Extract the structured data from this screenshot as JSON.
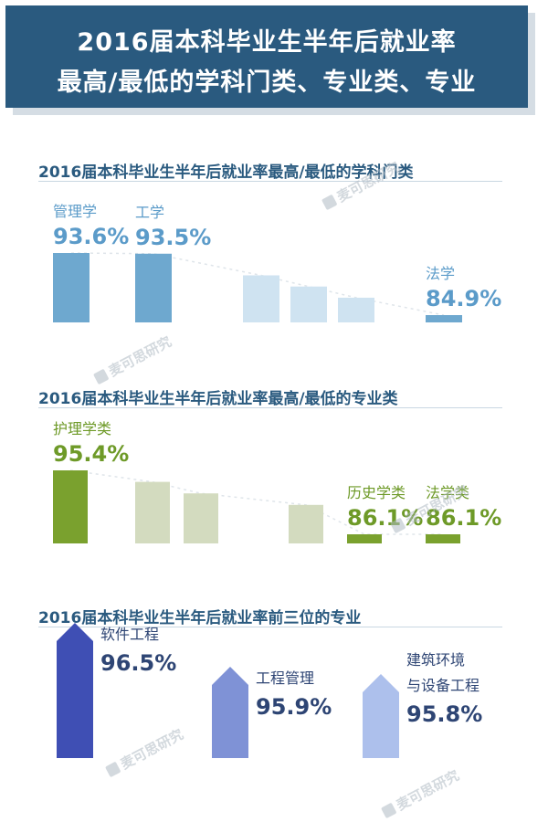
{
  "header": {
    "title_line1": "2016届本科毕业生半年后就业率",
    "title_line2": "最高/最低的学科门类、专业类、专业"
  },
  "watermark": {
    "text": "麦可思研究"
  },
  "chart_data": [
    {
      "type": "bar",
      "title": "2016届本科毕业生半年后就业率最高/最低的学科门类",
      "categories": [
        "管理学",
        "工学",
        "",
        "",
        "",
        "法学"
      ],
      "values": [
        93.6,
        93.5,
        null,
        null,
        null,
        84.9
      ],
      "data_labels": [
        "93.6%",
        "93.5%",
        "",
        "",
        "",
        "84.9%"
      ],
      "highlight_color": "#6ea8cf",
      "muted_color": "#cfe3f1",
      "label_color": "#5b9bc9"
    },
    {
      "type": "bar",
      "title": "2016届本科毕业生半年后就业率最高/最低的专业类",
      "categories": [
        "护理学类",
        "",
        "",
        "",
        "历史学类",
        "法学类"
      ],
      "values": [
        95.4,
        null,
        null,
        null,
        86.1,
        86.1
      ],
      "data_labels": [
        "95.4%",
        "",
        "",
        "",
        "86.1%",
        "86.1%"
      ],
      "highlight_color": "#7aa12e",
      "muted_color": "#d3dbbf",
      "label_color": "#6e9a28"
    },
    {
      "type": "bar",
      "title": "2016届本科毕业生半年后就业率前三位的专业",
      "categories": [
        "软件工程",
        "工程管理",
        "建筑环境与设备工程"
      ],
      "category_lines": [
        [
          "软件工程"
        ],
        [
          "工程管理"
        ],
        [
          "建筑环境",
          "与设备工程"
        ]
      ],
      "values": [
        96.5,
        95.9,
        95.8
      ],
      "data_labels": [
        "96.5%",
        "95.9%",
        "95.8%"
      ],
      "colors": [
        "#3f4fb4",
        "#7f92d6",
        "#adc0ec"
      ],
      "label_color": "#2e4574"
    }
  ]
}
